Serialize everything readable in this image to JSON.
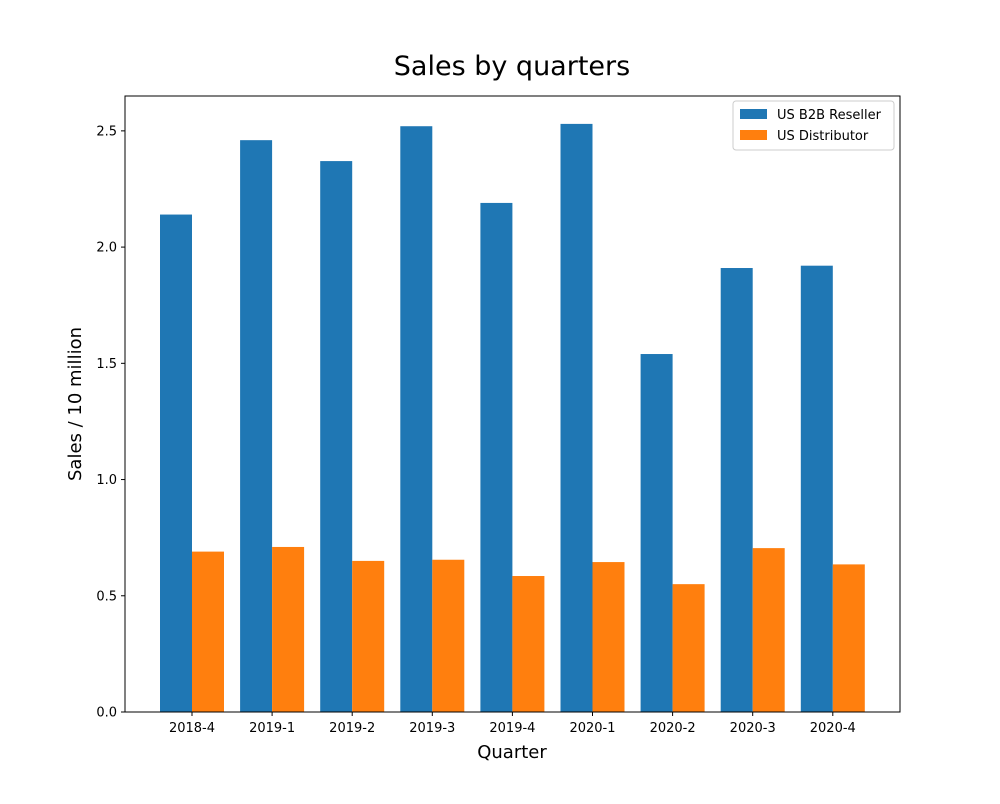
{
  "chart_data": {
    "type": "bar",
    "title": "Sales by quarters",
    "xlabel": "Quarter",
    "ylabel": "Sales / 10 million",
    "categories": [
      "2018-4",
      "2019-1",
      "2019-2",
      "2019-3",
      "2019-4",
      "2020-1",
      "2020-2",
      "2020-3",
      "2020-4"
    ],
    "series": [
      {
        "name": "US B2B Reseller",
        "color": "#1f77b4",
        "values": [
          2.14,
          2.46,
          2.37,
          2.52,
          2.19,
          2.53,
          1.54,
          1.91,
          1.92
        ]
      },
      {
        "name": "US Distributor",
        "color": "#ff7f0e",
        "values": [
          0.69,
          0.71,
          0.65,
          0.655,
          0.585,
          0.645,
          0.55,
          0.705,
          0.635
        ]
      }
    ],
    "ylim": [
      0,
      2.65
    ],
    "yticks": [
      "0.0",
      "0.5",
      "1.0",
      "1.5",
      "2.0",
      "2.5"
    ],
    "grid": false,
    "legend": "top-right"
  }
}
